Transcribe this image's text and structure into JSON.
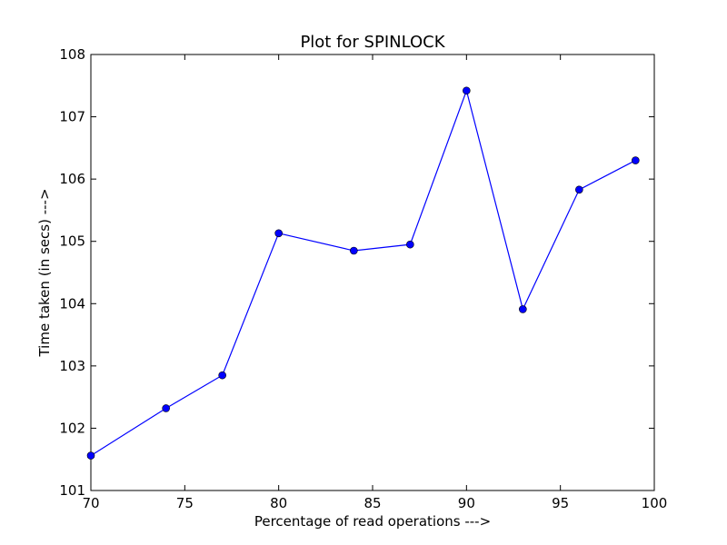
{
  "chart_data": {
    "type": "line",
    "title": "Plot for SPINLOCK",
    "xlabel": "Percentage of read operations --->",
    "ylabel": "Time taken (in secs) --->",
    "xlim": [
      70,
      100
    ],
    "ylim": [
      101,
      108
    ],
    "xticks": [
      70,
      75,
      80,
      85,
      90,
      95,
      100
    ],
    "yticks": [
      101,
      102,
      103,
      104,
      105,
      106,
      107,
      108
    ],
    "grid": false,
    "series": [
      {
        "color": "#0000ff",
        "marker": "circle",
        "x": [
          70,
          74,
          77,
          80,
          84,
          87,
          90,
          93,
          96,
          99
        ],
        "y": [
          101.56,
          102.32,
          102.85,
          105.13,
          104.85,
          104.95,
          107.42,
          103.91,
          105.83,
          106.3
        ]
      }
    ]
  }
}
